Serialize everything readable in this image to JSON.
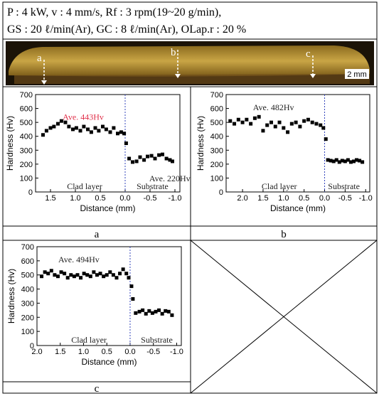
{
  "header": {
    "lines": [
      "P : 4 kW,  v : 4 mm/s,  Rf : 3 rpm(19~20 g/min),",
      "GS : 20 ℓ/min(Ar),  GC : 8 ℓ/min(Ar),  OLap.r : 20 %"
    ]
  },
  "photo": {
    "labels": [
      "a",
      "b",
      "c"
    ],
    "scale_bar": "2 mm"
  },
  "captions": [
    "a",
    "b",
    "c"
  ],
  "chart_data": [
    {
      "type": "scatter",
      "xlabel": "Distance (mm)",
      "ylabel": "Hardness (Hv)",
      "color": "#000000",
      "xlim": [
        1.8,
        -1.1
      ],
      "ylim": [
        0,
        700
      ],
      "xticks": [
        1.5,
        {
          "value": 1,
          "label": "1.0"
        },
        0.5,
        {
          "value": 0,
          "label": "0.0"
        },
        -0.5,
        {
          "value": -1,
          "label": "-1.0"
        }
      ],
      "yticks": [
        0,
        100,
        200,
        300,
        400,
        500,
        600,
        700
      ],
      "interface": 0,
      "interface_color": "#3344bb",
      "annotations": [
        {
          "text": "Ave. 443Hv",
          "color": "#e0304a"
        },
        {
          "text": "Clad layer",
          "color": "#222222"
        },
        {
          "text": "Substrate",
          "color": "#222222"
        },
        {
          "text": "Ave. 220Hv",
          "color": "#222222"
        }
      ],
      "x": [
        1.65,
        1.58,
        1.5,
        1.43,
        1.35,
        1.28,
        1.2,
        1.13,
        1.05,
        0.98,
        0.9,
        0.83,
        0.75,
        0.68,
        0.6,
        0.53,
        0.45,
        0.38,
        0.3,
        0.23,
        0.15,
        0.08,
        0.02,
        -0.02,
        -0.08,
        -0.15,
        -0.23,
        -0.3,
        -0.38,
        -0.45,
        -0.53,
        -0.6,
        -0.68,
        -0.75,
        -0.83,
        -0.9,
        -0.95
      ],
      "values": [
        410,
        440,
        460,
        470,
        490,
        510,
        500,
        470,
        450,
        460,
        440,
        470,
        450,
        430,
        460,
        440,
        470,
        450,
        430,
        460,
        420,
        430,
        420,
        350,
        240,
        215,
        220,
        250,
        230,
        255,
        260,
        240,
        265,
        270,
        240,
        230,
        220
      ]
    },
    {
      "type": "scatter",
      "xlabel": "Distance (mm)",
      "ylabel": "Hardness (Hv)",
      "color": "#000000",
      "xlim": [
        2.4,
        -1.1
      ],
      "ylim": [
        0,
        700
      ],
      "xticks": [
        {
          "value": 2,
          "label": "2.0"
        },
        1.5,
        {
          "value": 1,
          "label": "1.0"
        },
        0.5,
        {
          "value": 0,
          "label": "0.0"
        },
        -0.5,
        {
          "value": -1,
          "label": "-1.0"
        }
      ],
      "yticks": [
        0,
        100,
        200,
        300,
        400,
        500,
        600,
        700
      ],
      "interface": 0,
      "interface_color": "#3344bb",
      "annotations": [
        {
          "text": "Ave. 482Hv",
          "color": "#222222"
        },
        {
          "text": "Clad layer",
          "color": "#222222"
        },
        {
          "text": "Substrate",
          "color": "#222222"
        }
      ],
      "x": [
        2.3,
        2.2,
        2.1,
        2.0,
        1.9,
        1.8,
        1.7,
        1.6,
        1.5,
        1.4,
        1.3,
        1.2,
        1.1,
        1.0,
        0.9,
        0.8,
        0.7,
        0.6,
        0.5,
        0.4,
        0.3,
        0.2,
        0.1,
        0.03,
        -0.03,
        -0.08,
        -0.15,
        -0.22,
        -0.29,
        -0.36,
        -0.43,
        -0.5,
        -0.57,
        -0.64,
        -0.71,
        -0.78,
        -0.85,
        -0.92
      ],
      "values": [
        510,
        490,
        520,
        500,
        520,
        490,
        530,
        540,
        440,
        480,
        500,
        470,
        500,
        460,
        430,
        490,
        500,
        470,
        510,
        520,
        500,
        490,
        480,
        460,
        380,
        230,
        225,
        220,
        230,
        215,
        225,
        220,
        230,
        215,
        220,
        230,
        225,
        215
      ]
    },
    {
      "type": "scatter",
      "xlabel": "Distance (mm)",
      "ylabel": "Hardness (Hv)",
      "color": "#000000",
      "xlim": [
        2.0,
        -1.1
      ],
      "ylim": [
        0,
        700
      ],
      "xticks": [
        {
          "value": 2,
          "label": "2.0"
        },
        1.5,
        {
          "value": 1,
          "label": "1.0"
        },
        0.5,
        {
          "value": 0,
          "label": "0.0"
        },
        -0.5,
        {
          "value": -1,
          "label": "-1.0"
        }
      ],
      "yticks": [
        0,
        100,
        200,
        300,
        400,
        500,
        600,
        700
      ],
      "interface": 0,
      "interface_color": "#3344bb",
      "annotations": [
        {
          "text": "Ave. 494Hv",
          "color": "#222222"
        },
        {
          "text": "Clad layer",
          "color": "#222222"
        },
        {
          "text": "Substrate",
          "color": "#222222"
        }
      ],
      "x": [
        1.9,
        1.83,
        1.76,
        1.69,
        1.62,
        1.55,
        1.48,
        1.41,
        1.34,
        1.27,
        1.2,
        1.13,
        1.06,
        0.99,
        0.92,
        0.85,
        0.78,
        0.71,
        0.64,
        0.57,
        0.5,
        0.43,
        0.36,
        0.29,
        0.22,
        0.15,
        0.08,
        0.03,
        -0.03,
        -0.06,
        -0.12,
        -0.2,
        -0.27,
        -0.34,
        -0.41,
        -0.48,
        -0.55,
        -0.62,
        -0.69,
        -0.76,
        -0.83,
        -0.9
      ],
      "values": [
        490,
        520,
        510,
        530,
        500,
        490,
        520,
        510,
        480,
        500,
        490,
        500,
        480,
        510,
        500,
        490,
        520,
        500,
        510,
        490,
        500,
        520,
        500,
        480,
        510,
        540,
        510,
        480,
        420,
        330,
        230,
        240,
        250,
        225,
        245,
        230,
        240,
        250,
        225,
        245,
        240,
        215
      ]
    }
  ]
}
